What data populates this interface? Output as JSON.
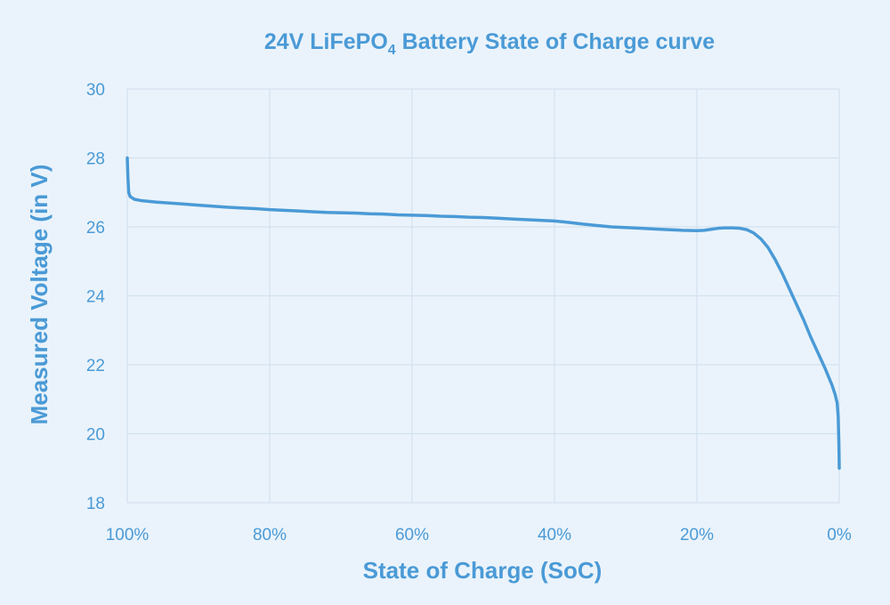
{
  "colors": {
    "background": "#eaf3fb",
    "text": "#4a9ad6",
    "curve": "#4a9ad6",
    "grid": "#d3e2ef"
  },
  "chart_data": {
    "type": "line",
    "title": {
      "main": "24V LiFePO",
      "subscript": "4",
      "rest": " Battery State of Charge curve"
    },
    "xlabel": "State of Charge (SoC)",
    "ylabel": "Measured Voltage (in V)",
    "x_reversed": true,
    "xlim": [
      100,
      0
    ],
    "ylim": [
      18,
      30
    ],
    "x_ticks": [
      100,
      80,
      60,
      40,
      20,
      0
    ],
    "x_tick_labels": [
      "100%",
      "80%",
      "60%",
      "40%",
      "20%",
      "0%"
    ],
    "y_ticks": [
      18,
      20,
      22,
      24,
      26,
      28,
      30
    ],
    "y_tick_labels": [
      "18",
      "20",
      "22",
      "24",
      "26",
      "28",
      "30"
    ],
    "grid": true,
    "series": [
      {
        "x": [
          100,
          99.9,
          99.8,
          99.6,
          99.3,
          99,
          98,
          96,
          94,
          92,
          90,
          88,
          86,
          84,
          82,
          80,
          78,
          76,
          74,
          72,
          70,
          68,
          66,
          64,
          62,
          60,
          58,
          56,
          54,
          52,
          50,
          48,
          46,
          44,
          42,
          40,
          38,
          36,
          34,
          32,
          30,
          28,
          26,
          24,
          22,
          20,
          19,
          18,
          17,
          16,
          15,
          14,
          13,
          12,
          11,
          10,
          9,
          8,
          7,
          6,
          5,
          4,
          3,
          2,
          1.5,
          1,
          0.6,
          0.3,
          0.15,
          0.05,
          0
        ],
        "y": [
          28.0,
          27.4,
          27.0,
          26.88,
          26.84,
          26.8,
          26.76,
          26.72,
          26.69,
          26.66,
          26.63,
          26.6,
          26.57,
          26.55,
          26.53,
          26.5,
          26.48,
          26.46,
          26.44,
          26.42,
          26.41,
          26.4,
          26.38,
          26.37,
          26.35,
          26.34,
          26.33,
          26.31,
          26.3,
          26.28,
          26.27,
          26.25,
          26.23,
          26.21,
          26.19,
          26.17,
          26.13,
          26.08,
          26.04,
          26.0,
          25.98,
          25.96,
          25.94,
          25.92,
          25.9,
          25.89,
          25.9,
          25.93,
          25.96,
          25.97,
          25.97,
          25.96,
          25.92,
          25.82,
          25.65,
          25.4,
          25.05,
          24.65,
          24.2,
          23.75,
          23.3,
          22.8,
          22.35,
          21.9,
          21.65,
          21.4,
          21.15,
          20.9,
          20.5,
          19.7,
          19.0
        ]
      }
    ]
  }
}
